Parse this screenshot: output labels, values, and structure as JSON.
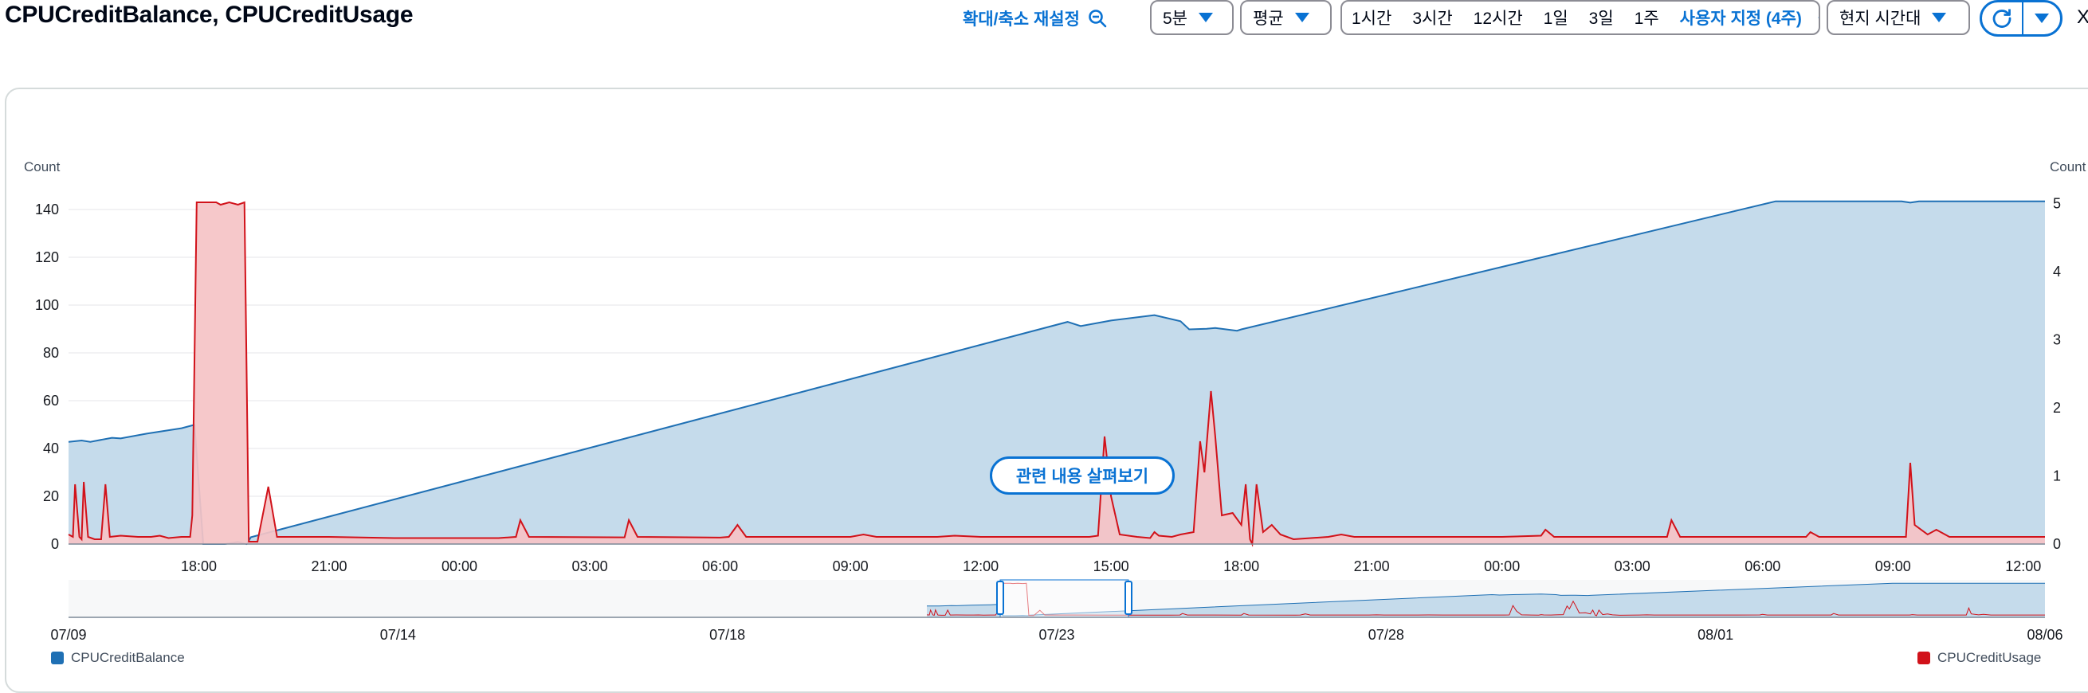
{
  "header": {
    "title": "CPUCreditBalance, CPUCreditUsage",
    "zoom_reset_label": "확대/축소 재설정",
    "period_value": "5분",
    "statistic_value": "평균",
    "time_ranges": [
      "1시간",
      "3시간",
      "12시간",
      "1일",
      "3일",
      "1주"
    ],
    "custom_range_label": "사용자 지정 (4주)",
    "timezone_value": "현지 시간대",
    "close_glyph": "X"
  },
  "icons": {
    "zoom_reset": "zoom-out-icon",
    "custom_range": "calendar-icon",
    "refresh": "refresh-icon",
    "dropdown": "caret-down-icon"
  },
  "explore_button_label": "관련 내용 살펴보기",
  "legend": {
    "left": "CPUCreditBalance",
    "right": "CPUCreditUsage"
  },
  "colors": {
    "balance_line": "#1f70b4",
    "balance_fill": "#c5dbeb",
    "usage_line": "#d1121a",
    "usage_fill": "#f5c3c5",
    "accent": "#0972d3"
  },
  "chart_data": {
    "type": "area",
    "left_axis": {
      "label": "Count",
      "ticks": [
        0,
        20,
        40,
        60,
        80,
        100,
        120,
        140
      ],
      "range": [
        0,
        144
      ]
    },
    "right_axis": {
      "label": "Count",
      "ticks": [
        0,
        1,
        2,
        3,
        4,
        5
      ],
      "range": [
        0,
        5.05
      ]
    },
    "x_tick_labels": [
      "18:00",
      "21:00",
      "00:00",
      "03:00",
      "06:00",
      "09:00",
      "12:00",
      "15:00",
      "18:00",
      "21:00",
      "00:00",
      "03:00",
      "06:00",
      "09:00",
      "12:00"
    ],
    "x_range_hours": [
      0,
      45.5
    ],
    "series": [
      {
        "name": "CPUCreditBalance",
        "axis": "right",
        "points": [
          [
            0,
            1.5
          ],
          [
            0.3,
            1.52
          ],
          [
            0.5,
            1.5
          ],
          [
            1.0,
            1.56
          ],
          [
            1.2,
            1.55
          ],
          [
            1.8,
            1.62
          ],
          [
            2.2,
            1.66
          ],
          [
            2.6,
            1.7
          ],
          [
            2.9,
            1.75
          ],
          [
            3.1,
            0
          ],
          [
            3.6,
            0
          ],
          [
            3.9,
            0.03
          ],
          [
            4.1,
            0
          ],
          [
            4.2,
            0.1
          ],
          [
            23.0,
            3.26
          ],
          [
            23.3,
            3.2
          ],
          [
            24.0,
            3.28
          ],
          [
            25.0,
            3.36
          ],
          [
            25.6,
            3.27
          ],
          [
            25.8,
            3.15
          ],
          [
            26.2,
            3.16
          ],
          [
            26.4,
            3.17
          ],
          [
            26.9,
            3.13
          ],
          [
            27.0,
            3.15
          ],
          [
            39.3,
            5.03
          ],
          [
            42.2,
            5.03
          ],
          [
            42.4,
            5.01
          ],
          [
            42.6,
            5.03
          ],
          [
            45.5,
            5.03
          ]
        ]
      },
      {
        "name": "CPUCreditUsage",
        "axis": "left",
        "points": [
          [
            0,
            4
          ],
          [
            0.1,
            3
          ],
          [
            0.15,
            25
          ],
          [
            0.25,
            3
          ],
          [
            0.3,
            2
          ],
          [
            0.35,
            26
          ],
          [
            0.45,
            3
          ],
          [
            0.6,
            2
          ],
          [
            0.75,
            2
          ],
          [
            0.85,
            25
          ],
          [
            0.95,
            3
          ],
          [
            1.2,
            3.5
          ],
          [
            1.6,
            3
          ],
          [
            1.9,
            3
          ],
          [
            2.1,
            3.5
          ],
          [
            2.3,
            2.5
          ],
          [
            2.6,
            3
          ],
          [
            2.8,
            3
          ],
          [
            2.85,
            12
          ],
          [
            2.95,
            143
          ],
          [
            3.4,
            143
          ],
          [
            3.5,
            142
          ],
          [
            3.7,
            143
          ],
          [
            3.9,
            142
          ],
          [
            4.05,
            143
          ],
          [
            4.15,
            1
          ],
          [
            4.35,
            1
          ],
          [
            4.6,
            24
          ],
          [
            4.8,
            3
          ],
          [
            5.2,
            3
          ],
          [
            6.0,
            3
          ],
          [
            7.5,
            2.5
          ],
          [
            8.5,
            2.5
          ],
          [
            9.9,
            2.5
          ],
          [
            10.3,
            3
          ],
          [
            10.4,
            10
          ],
          [
            10.6,
            3
          ],
          [
            12.8,
            2.8
          ],
          [
            12.9,
            10
          ],
          [
            13.1,
            3
          ],
          [
            15.0,
            2.7
          ],
          [
            15.2,
            3
          ],
          [
            15.4,
            8
          ],
          [
            15.6,
            3
          ],
          [
            18.0,
            3
          ],
          [
            18.3,
            4
          ],
          [
            18.6,
            3
          ],
          [
            20.0,
            3
          ],
          [
            20.4,
            3.5
          ],
          [
            21.0,
            3
          ],
          [
            23.5,
            3
          ],
          [
            23.7,
            3.5
          ],
          [
            23.85,
            45
          ],
          [
            24.0,
            20
          ],
          [
            24.2,
            4
          ],
          [
            24.6,
            3
          ],
          [
            24.9,
            2.5
          ],
          [
            25.0,
            5
          ],
          [
            25.1,
            3.5
          ],
          [
            25.4,
            3
          ],
          [
            25.6,
            4
          ],
          [
            25.9,
            5
          ],
          [
            26.05,
            43
          ],
          [
            26.15,
            30
          ],
          [
            26.3,
            64
          ],
          [
            26.4,
            45
          ],
          [
            26.55,
            12
          ],
          [
            26.8,
            13
          ],
          [
            27.0,
            8
          ],
          [
            27.1,
            25
          ],
          [
            27.2,
            2
          ],
          [
            27.25,
            0
          ],
          [
            27.35,
            25
          ],
          [
            27.5,
            5
          ],
          [
            27.7,
            8
          ],
          [
            27.9,
            4
          ],
          [
            28.2,
            2
          ],
          [
            29.0,
            3
          ],
          [
            29.3,
            4
          ],
          [
            29.6,
            3
          ],
          [
            31.0,
            3
          ],
          [
            33.0,
            3
          ],
          [
            33.9,
            3.5
          ],
          [
            34.0,
            6
          ],
          [
            34.2,
            3
          ],
          [
            36.8,
            3
          ],
          [
            36.9,
            10
          ],
          [
            37.1,
            3
          ],
          [
            40.0,
            3
          ],
          [
            40.1,
            5
          ],
          [
            40.3,
            3
          ],
          [
            42.3,
            3
          ],
          [
            42.4,
            34
          ],
          [
            42.5,
            8
          ],
          [
            42.8,
            4
          ],
          [
            43.0,
            6
          ],
          [
            43.3,
            3
          ],
          [
            45.5,
            3
          ]
        ]
      }
    ]
  },
  "overview": {
    "date_labels": [
      "07/09",
      "07/14",
      "07/18",
      "07/23",
      "07/28",
      "08/01",
      "08/06"
    ]
  }
}
